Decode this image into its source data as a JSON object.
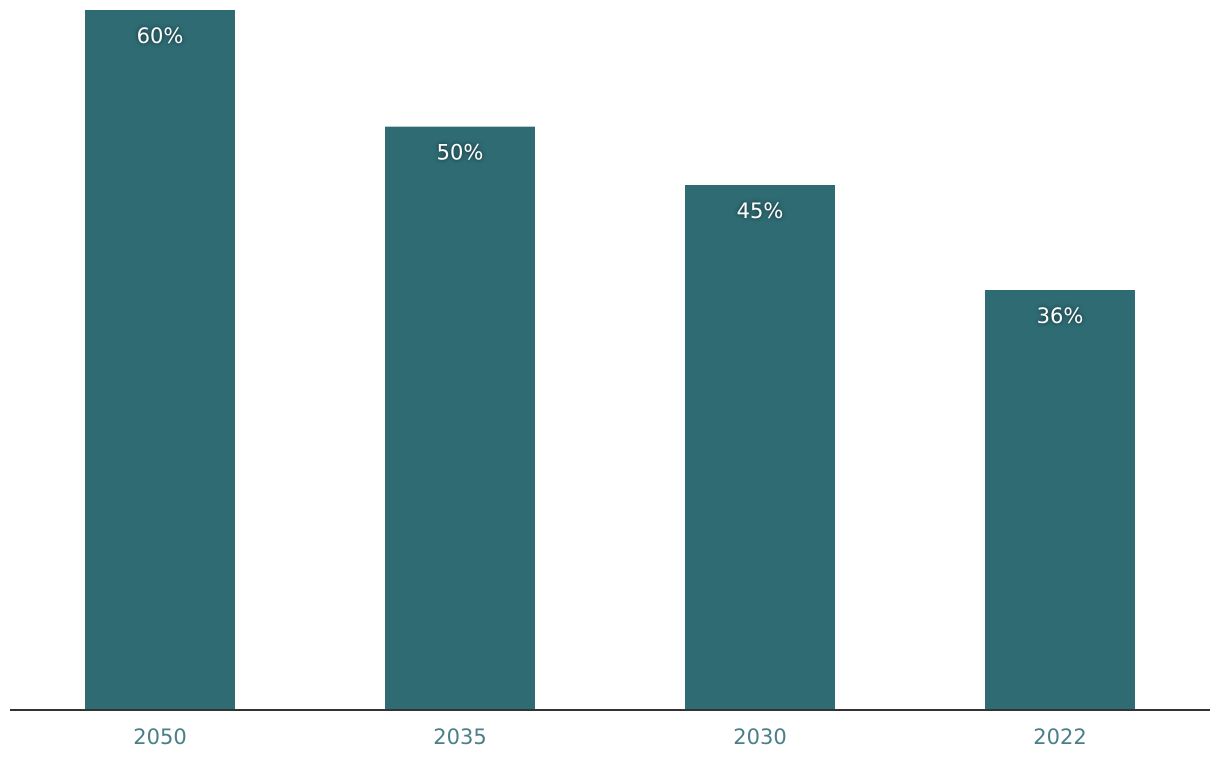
{
  "chart_data": {
    "type": "bar",
    "categories": [
      "2050",
      "2035",
      "2030",
      "2022"
    ],
    "values": [
      60,
      50,
      45,
      36
    ],
    "value_labels": [
      "60%",
      "50%",
      "45%",
      "36%"
    ],
    "color": "#2e6b73",
    "ylim": [
      0,
      60
    ]
  }
}
